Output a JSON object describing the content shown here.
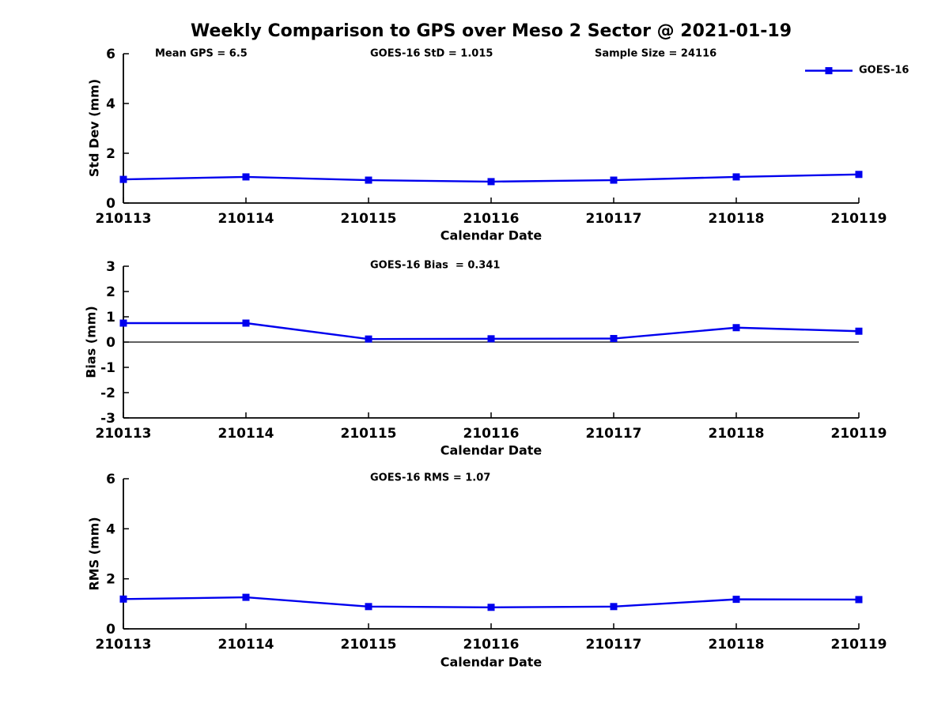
{
  "page": {
    "title": "Weekly Comparison to GPS over Meso 2 Sector @ 2021-01-19"
  },
  "colors": {
    "series_blue": "#0000EE",
    "axis_black": "#000000",
    "zero_line_black": "#000000",
    "background": "#FFFFFF"
  },
  "legend": {
    "series_label": "GOES-16"
  },
  "chart_data": [
    {
      "type": "line",
      "x": [
        "210113",
        "210114",
        "210115",
        "210116",
        "210117",
        "210118",
        "210119"
      ],
      "series": [
        {
          "name": "GOES-16",
          "marker": "square",
          "color": "#0000EE",
          "values": [
            0.95,
            1.05,
            0.92,
            0.86,
            0.92,
            1.05,
            1.15
          ]
        }
      ],
      "ylabel": "Std Dev (mm)",
      "xlabel": "Calendar Date",
      "ylim": [
        0,
        6
      ],
      "yticks": [
        0,
        2,
        4,
        6
      ],
      "grid": false,
      "legend_position": "top-right",
      "annotations": [
        "Mean GPS = 6.5",
        "GOES-16 StD = 1.015",
        "Sample Size = 24116"
      ]
    },
    {
      "type": "line",
      "x": [
        "210113",
        "210114",
        "210115",
        "210116",
        "210117",
        "210118",
        "210119"
      ],
      "series": [
        {
          "name": "GOES-16",
          "marker": "square",
          "color": "#0000EE",
          "values": [
            0.75,
            0.75,
            0.12,
            0.13,
            0.14,
            0.57,
            0.43
          ]
        }
      ],
      "ylabel": "Bias (mm)",
      "xlabel": "Calendar Date",
      "ylim": [
        -3,
        3
      ],
      "yticks": [
        3,
        2,
        1,
        0,
        -1,
        -2,
        -3
      ],
      "zero_line": true,
      "grid": false,
      "annotations": [
        "GOES-16 Bias  = 0.341"
      ]
    },
    {
      "type": "line",
      "x": [
        "210113",
        "210114",
        "210115",
        "210116",
        "210117",
        "210118",
        "210119"
      ],
      "series": [
        {
          "name": "GOES-16",
          "marker": "square",
          "color": "#0000EE",
          "values": [
            1.19,
            1.26,
            0.89,
            0.86,
            0.89,
            1.18,
            1.17
          ]
        }
      ],
      "ylabel": "RMS (mm)",
      "xlabel": "Calendar Date",
      "ylim": [
        0,
        6
      ],
      "yticks": [
        0,
        2,
        4,
        6
      ],
      "grid": false,
      "annotations": [
        "GOES-16 RMS = 1.07"
      ]
    }
  ]
}
